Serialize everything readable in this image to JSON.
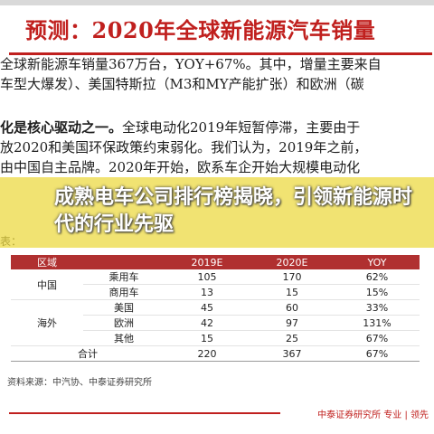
{
  "title": "预测：2020年全球新能源汽车销量",
  "paragraph1": [
    "全球新能源车销量367万台，YOY+67%。其中，增量主要来自",
    "车型大爆发）、美国特斯拉（M3和MY产能扩张）和欧洲（碳"
  ],
  "paragraph2": {
    "bold": "化是核心驱动之一。",
    "rest": "全球电动化2019年短暂停滞，主要由于",
    "lines": [
      "放2020和美国环保政策约束弱化。我们认为，2019年之前，",
      "由中国自主品牌。2020年开始，欧系车企开始大规模电动化"
    ]
  },
  "overlay": {
    "text": "成熟电车公司排行榜揭晓，引领新能源时代的行业先驱"
  },
  "table": {
    "caption": "表：",
    "headers": [
      "区域",
      "",
      "2019E",
      "2020E",
      "YOY"
    ],
    "groups": [
      {
        "region": "中国",
        "rows": [
          {
            "type": "乘用车",
            "v2019": "105",
            "v2020": "170",
            "yoy": "62%"
          },
          {
            "type": "商用车",
            "v2019": "13",
            "v2020": "15",
            "yoy": "15%"
          }
        ]
      },
      {
        "region": "海外",
        "rows": [
          {
            "type": "美国",
            "v2019": "45",
            "v2020": "60",
            "yoy": "33%"
          },
          {
            "type": "欧洲",
            "v2019": "42",
            "v2020": "97",
            "yoy": "131%"
          },
          {
            "type": "其他",
            "v2019": "15",
            "v2020": "25",
            "yoy": "67%"
          }
        ]
      }
    ],
    "total": {
      "label": "合计",
      "v2019": "220",
      "v2020": "367",
      "yoy": "67%"
    }
  },
  "source": "资料来源：中汽协、中泰证券研究所",
  "footer": "中泰证券研究所 专业 | 领先",
  "colors": {
    "accent": "#c0201e",
    "overlay": "#ecd83c",
    "table_header": "#b03030"
  }
}
